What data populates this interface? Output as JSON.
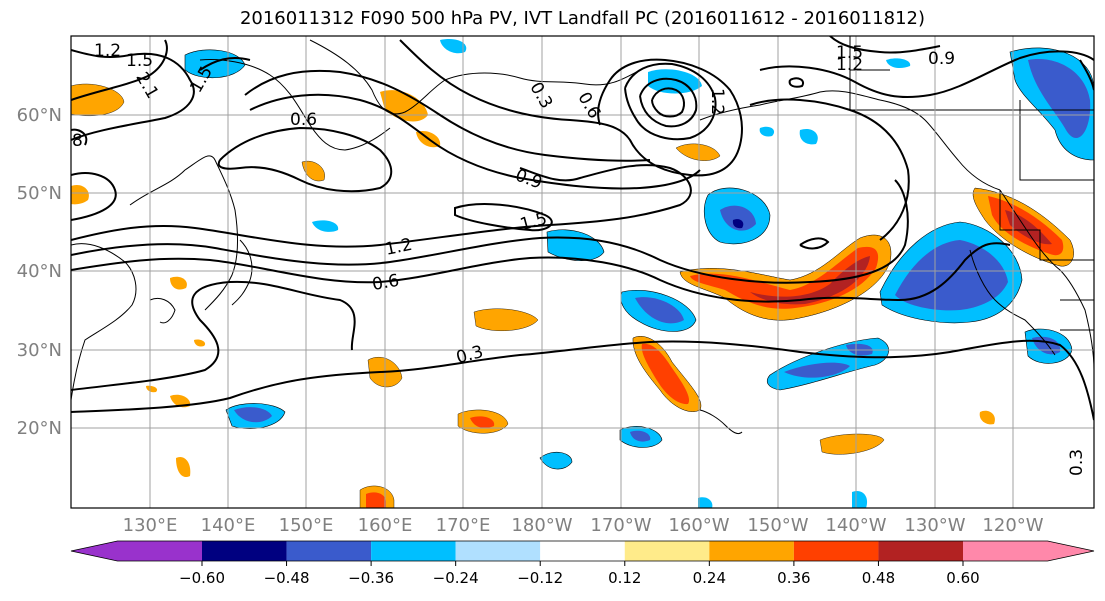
{
  "title": "2016011312 F090 500 hPa PV, IVT Landfall PC (2016011612 - 2016011812)",
  "lat_labels": [
    "60°N",
    "50°N",
    "40°N",
    "30°N",
    "20°N"
  ],
  "lon_labels": [
    "130°E",
    "140°E",
    "150°E",
    "160°E",
    "170°E",
    "180°W",
    "170°W",
    "160°W",
    "150°W",
    "140°W",
    "130°W",
    "120°W"
  ],
  "contour_labels": [
    "1.2",
    "1.5",
    "2.1",
    "1.5",
    "8",
    "0.6",
    "0.3",
    "0.6",
    "1.2",
    "1.5",
    "1.2",
    "0.9",
    "0.9",
    "1.5",
    "1.2",
    "0.6",
    "0.3",
    "0.3"
  ],
  "colorbar": {
    "ticks": [
      "−0.60",
      "−0.48",
      "−0.36",
      "−0.24",
      "−0.12",
      "0.12",
      "0.24",
      "0.36",
      "0.48",
      "0.60"
    ],
    "colors": [
      "#9932cc",
      "#000080",
      "#3a5bcc",
      "#00bfff",
      "#b0e0ff",
      "#ffffff",
      "#ffeb8a",
      "#ffa500",
      "#ff4000",
      "#b22222",
      "#ff88aa"
    ]
  }
}
